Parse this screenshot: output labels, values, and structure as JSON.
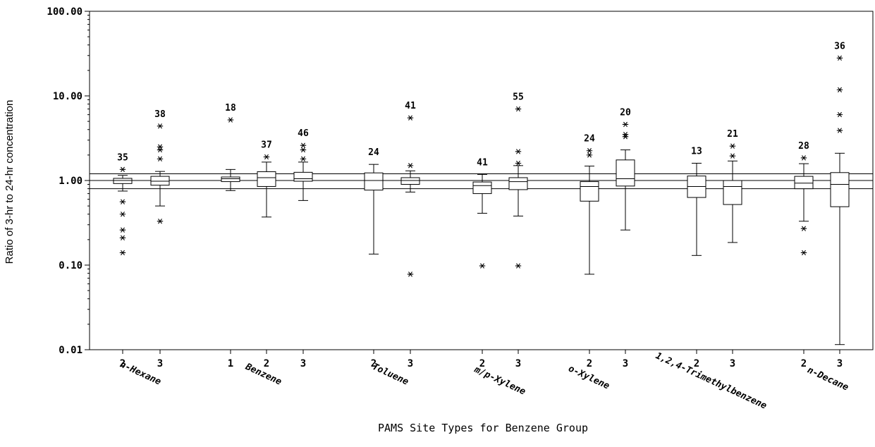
{
  "chart_data": {
    "type": "box",
    "title": "",
    "xlabel": "PAMS Site Types for Benzene Group",
    "ylabel": "Ratio of 3-hr to 24-hr concentration",
    "y_scale": "log",
    "ylim": [
      0.01,
      100
    ],
    "y_ticks": [
      "0.01",
      "0.10",
      "1.00",
      "10.00",
      "100.00"
    ],
    "reference_lines": [
      0.8,
      1.0,
      1.2
    ],
    "groups": [
      {
        "name": "n-Hexane",
        "boxes": [
          {
            "site_type": "2",
            "n": "35",
            "whisker_low": 0.75,
            "q1": 0.92,
            "median": 1.0,
            "q3": 1.06,
            "whisker_high": 1.15,
            "outliers": [
              1.35,
              0.56,
              0.4,
              0.26,
              0.21,
              0.14
            ]
          },
          {
            "site_type": "3",
            "n": "38",
            "whisker_low": 0.5,
            "q1": 0.88,
            "median": 0.98,
            "q3": 1.12,
            "whisker_high": 1.28,
            "outliers": [
              4.4,
              2.5,
              2.3,
              1.8,
              0.33
            ]
          }
        ]
      },
      {
        "name": "Benzene",
        "boxes": [
          {
            "site_type": "1",
            "n": "18",
            "whisker_low": 0.76,
            "q1": 0.97,
            "median": 1.05,
            "q3": 1.1,
            "whisker_high": 1.35,
            "outliers": [
              5.2
            ]
          },
          {
            "site_type": "2",
            "n": "37",
            "whisker_low": 0.37,
            "q1": 0.85,
            "median": 1.08,
            "q3": 1.27,
            "whisker_high": 1.65,
            "outliers": [
              1.9
            ]
          },
          {
            "site_type": "3",
            "n": "46",
            "whisker_low": 0.58,
            "q1": 0.98,
            "median": 1.05,
            "q3": 1.25,
            "whisker_high": 1.65,
            "outliers": [
              2.6,
              2.3,
              1.8
            ]
          }
        ]
      },
      {
        "name": "Toluene",
        "boxes": [
          {
            "site_type": "2",
            "n": "24",
            "whisker_low": 0.135,
            "q1": 0.77,
            "median": 1.0,
            "q3": 1.23,
            "whisker_high": 1.55,
            "outliers": []
          },
          {
            "site_type": "3",
            "n": "41",
            "whisker_low": 0.73,
            "q1": 0.9,
            "median": 1.0,
            "q3": 1.08,
            "whisker_high": 1.3,
            "outliers": [
              5.5,
              1.5,
              0.078
            ]
          }
        ]
      },
      {
        "name": "m/p-Xylene",
        "boxes": [
          {
            "site_type": "2",
            "n": "41",
            "whisker_low": 0.41,
            "q1": 0.7,
            "median": 0.87,
            "q3": 0.96,
            "whisker_high": 1.18,
            "outliers": [
              0.098
            ]
          },
          {
            "site_type": "3",
            "n": "55",
            "whisker_low": 0.38,
            "q1": 0.78,
            "median": 0.97,
            "q3": 1.08,
            "whisker_high": 1.5,
            "outliers": [
              7.0,
              2.2,
              1.6,
              0.098
            ]
          }
        ]
      },
      {
        "name": "o-Xylene",
        "boxes": [
          {
            "site_type": "2",
            "n": "24",
            "whisker_low": 0.078,
            "q1": 0.57,
            "median": 0.85,
            "q3": 0.97,
            "whisker_high": 1.48,
            "outliers": [
              2.25,
              2.0
            ]
          },
          {
            "site_type": "3",
            "n": "20",
            "whisker_low": 0.26,
            "q1": 0.86,
            "median": 1.05,
            "q3": 1.75,
            "whisker_high": 2.3,
            "outliers": [
              4.6,
              3.5,
              3.3
            ]
          }
        ]
      },
      {
        "name": "1,2,4-Trimethylbenzene",
        "boxes": [
          {
            "site_type": "2",
            "n": "13",
            "whisker_low": 0.13,
            "q1": 0.63,
            "median": 0.85,
            "q3": 1.13,
            "whisker_high": 1.6,
            "outliers": []
          },
          {
            "site_type": "3",
            "n": "21",
            "whisker_low": 0.185,
            "q1": 0.52,
            "median": 0.85,
            "q3": 1.0,
            "whisker_high": 1.7,
            "outliers": [
              2.55,
              1.95
            ]
          }
        ]
      },
      {
        "name": "n-Decane",
        "boxes": [
          {
            "site_type": "2",
            "n": "28",
            "whisker_low": 0.33,
            "q1": 0.8,
            "median": 0.93,
            "q3": 1.12,
            "whisker_high": 1.58,
            "outliers": [
              1.85,
              0.27,
              0.14
            ]
          },
          {
            "site_type": "3",
            "n": "36",
            "whisker_low": 0.0115,
            "q1": 0.49,
            "median": 0.9,
            "q3": 1.24,
            "whisker_high": 2.1,
            "outliers": [
              28.0,
              11.8,
              6.0,
              3.9
            ]
          }
        ]
      }
    ]
  }
}
